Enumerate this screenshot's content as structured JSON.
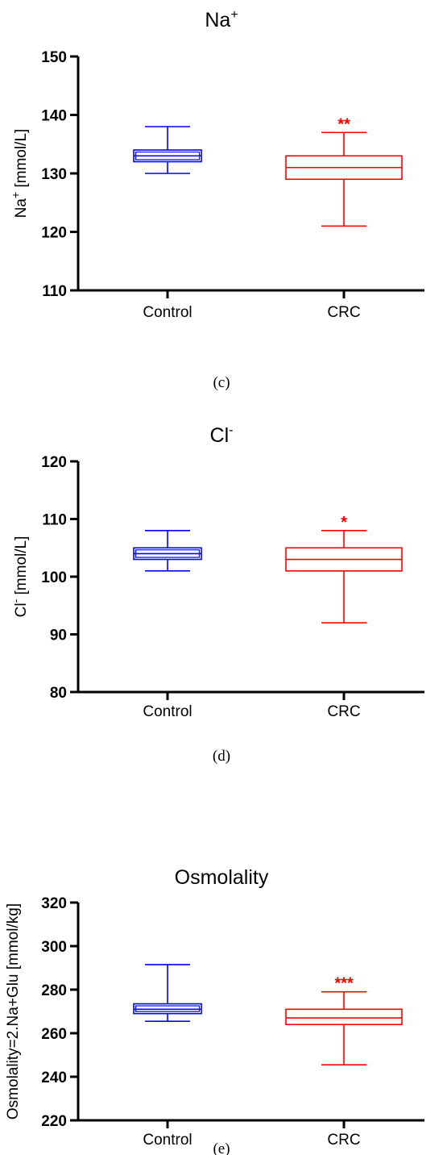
{
  "colors": {
    "control": "#0000ff",
    "crc": "#ff0000",
    "axis": "#000000"
  },
  "chart_data": [
    {
      "type": "box",
      "panel_label": "(c)",
      "title": "Na",
      "title_sup": "+",
      "ylabel": "Na",
      "ylabel_sup": "+",
      "ylabel_rest": " [mmol/L]",
      "ylim": [
        110,
        150
      ],
      "yticks": [
        110,
        120,
        130,
        140,
        150
      ],
      "categories": [
        "Control",
        "CRC"
      ],
      "series": [
        {
          "category": "Control",
          "color": "#0000ff",
          "min": 130,
          "q1": 132,
          "median": 133,
          "q3": 134,
          "max": 138,
          "sig": ""
        },
        {
          "category": "CRC",
          "color": "#ff0000",
          "min": 121,
          "q1": 129,
          "median": 131,
          "q3": 133,
          "max": 137,
          "sig": "**"
        }
      ]
    },
    {
      "type": "box",
      "panel_label": "(d)",
      "title": "Cl",
      "title_sup": "-",
      "ylabel": "Cl",
      "ylabel_sup": "-",
      "ylabel_rest": " [mmol/L]",
      "ylim": [
        80,
        120
      ],
      "yticks": [
        80,
        90,
        100,
        110,
        120
      ],
      "categories": [
        "Control",
        "CRC"
      ],
      "series": [
        {
          "category": "Control",
          "color": "#0000ff",
          "min": 101,
          "q1": 103,
          "median": 104,
          "q3": 105,
          "max": 108,
          "sig": ""
        },
        {
          "category": "CRC",
          "color": "#ff0000",
          "min": 92,
          "q1": 101,
          "median": 103,
          "q3": 105,
          "max": 108,
          "sig": "*"
        }
      ]
    },
    {
      "type": "box",
      "panel_label": "(e)",
      "title": "Osmolality",
      "title_sup": "",
      "ylabel": "Osmolality=2.Na+Glu",
      "ylabel_sup": "",
      "ylabel_rest": " [mmol/kg]",
      "ylim": [
        220,
        320
      ],
      "yticks": [
        220,
        240,
        260,
        280,
        300,
        320
      ],
      "categories": [
        "Control",
        "CRC"
      ],
      "series": [
        {
          "category": "Control",
          "color": "#0000ff",
          "min": 265.5,
          "q1": 269,
          "median": 271,
          "q3": 273.5,
          "max": 291.5,
          "sig": ""
        },
        {
          "category": "CRC",
          "color": "#ff0000",
          "min": 245.5,
          "q1": 264,
          "median": 267,
          "q3": 271,
          "max": 279,
          "sig": "***"
        }
      ]
    }
  ]
}
